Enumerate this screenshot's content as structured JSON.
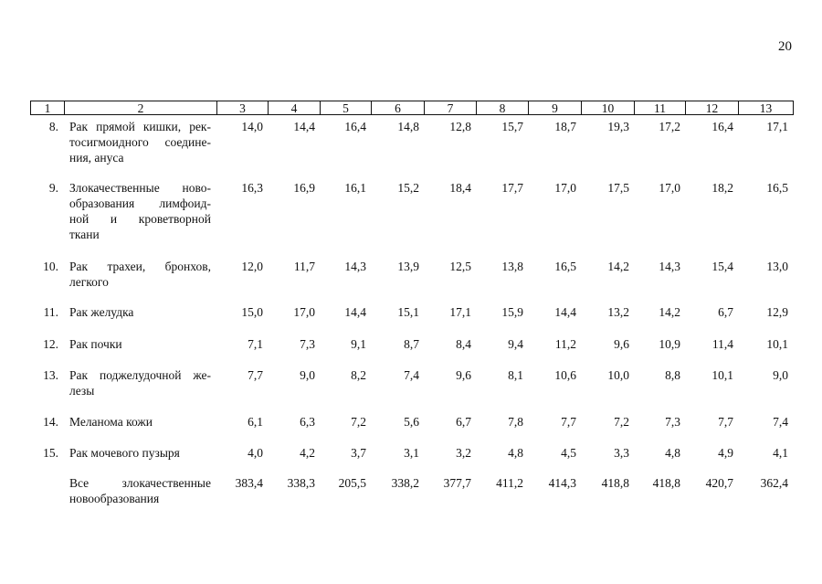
{
  "page_number": "20",
  "table": {
    "header": [
      "1",
      "2",
      "3",
      "4",
      "5",
      "6",
      "7",
      "8",
      "9",
      "10",
      "11",
      "12",
      "13"
    ],
    "rows": [
      {
        "number": "8.",
        "name": [
          "Рак прямой кишки, рек-",
          "тосигмоидного соедине-",
          "ния, ануса"
        ],
        "values": [
          "14,0",
          "14,4",
          "16,4",
          "14,8",
          "12,8",
          "15,7",
          "18,7",
          "19,3",
          "17,2",
          "16,4",
          "17,1"
        ]
      },
      {
        "number": "9.",
        "name": [
          "Злокачественные ново-",
          "образования лимфоид-",
          "ной и кроветворной",
          "ткани"
        ],
        "values": [
          "16,3",
          "16,9",
          "16,1",
          "15,2",
          "18,4",
          "17,7",
          "17,0",
          "17,5",
          "17,0",
          "18,2",
          "16,5"
        ]
      },
      {
        "number": "10.",
        "name": [
          "Рак трахеи, бронхов,",
          "легкого"
        ],
        "values": [
          "12,0",
          "11,7",
          "14,3",
          "13,9",
          "12,5",
          "13,8",
          "16,5",
          "14,2",
          "14,3",
          "15,4",
          "13,0"
        ]
      },
      {
        "number": "11.",
        "name": [
          "Рак желудка"
        ],
        "values": [
          "15,0",
          "17,0",
          "14,4",
          "15,1",
          "17,1",
          "15,9",
          "14,4",
          "13,2",
          "14,2",
          "6,7",
          "12,9"
        ]
      },
      {
        "number": "12.",
        "name": [
          "Рак почки"
        ],
        "values": [
          "7,1",
          "7,3",
          "9,1",
          "8,7",
          "8,4",
          "9,4",
          "11,2",
          "9,6",
          "10,9",
          "11,4",
          "10,1"
        ]
      },
      {
        "number": "13.",
        "name": [
          "Рак поджелудочной же-",
          "лезы"
        ],
        "values": [
          "7,7",
          "9,0",
          "8,2",
          "7,4",
          "9,6",
          "8,1",
          "10,6",
          "10,0",
          "8,8",
          "10,1",
          "9,0"
        ]
      },
      {
        "number": "14.",
        "name": [
          "Меланома кожи"
        ],
        "values": [
          "6,1",
          "6,3",
          "7,2",
          "5,6",
          "6,7",
          "7,8",
          "7,7",
          "7,2",
          "7,3",
          "7,7",
          "7,4"
        ]
      },
      {
        "number": "15.",
        "name": [
          "Рак мочевого пузыря"
        ],
        "values": [
          "4,0",
          "4,2",
          "3,7",
          "3,1",
          "3,2",
          "4,8",
          "4,5",
          "3,3",
          "4,8",
          "4,9",
          "4,1"
        ]
      },
      {
        "name": [
          "Все злокачественные",
          "новообразования"
        ],
        "values": [
          "383,4",
          "338,3",
          "205,5",
          "338,2",
          "377,7",
          "411,2",
          "414,3",
          "418,8",
          "418,8",
          "420,7",
          "362,4"
        ]
      }
    ]
  }
}
